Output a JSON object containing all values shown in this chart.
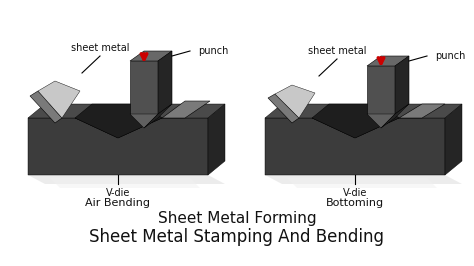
{
  "bg_color": "#ffffff",
  "title1": "Sheet Metal Forming",
  "title2": "Sheet Metal Stamping And Bending",
  "label_air": "Air Bending",
  "label_bottoming": "Bottoming",
  "label_vdie": "V-die",
  "label_punch": "punch",
  "label_sheet": "sheet metal",
  "title1_fontsize": 11,
  "title2_fontsize": 12,
  "label_fontsize": 7,
  "dark_gray": "#3c3c3c",
  "darker_gray": "#252525",
  "mid_gray": "#505050",
  "top_gray": "#4a4a4a",
  "sheet_front": "#7a7a7a",
  "sheet_top": "#b0b0b0",
  "sheet_light": "#c8c8c8",
  "red": "#cc0000",
  "text_color": "#111111",
  "shadow_color": "#e8e8e8"
}
